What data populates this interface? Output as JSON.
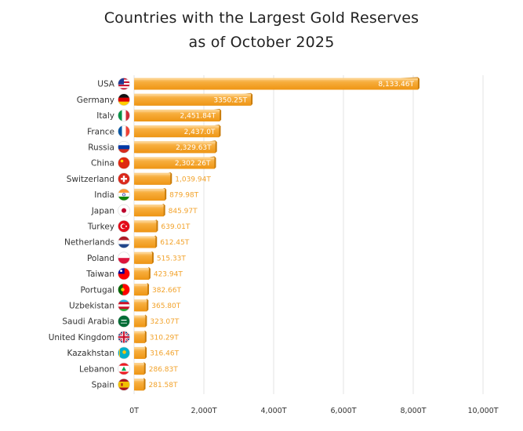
{
  "title_line1": "Countries with the Largest Gold Reserves",
  "title_line2": "as of October 2025",
  "chart_data": {
    "type": "bar",
    "orientation": "horizontal",
    "title": "Countries with the Largest Gold Reserves as of October 2025",
    "xlabel": "",
    "ylabel": "",
    "xlim": [
      0,
      10000
    ],
    "grid": true,
    "categories": [
      "USA",
      "Germany",
      "Italy",
      "France",
      "Russia",
      "China",
      "Switzerland",
      "India",
      "Japan",
      "Turkey",
      "Netherlands",
      "Poland",
      "Taiwan",
      "Portugal",
      "Uzbekistan",
      "Saudi Arabia",
      "United Kingdom",
      "Kazakhstan",
      "Lebanon",
      "Spain"
    ],
    "values": [
      8133.46,
      3350.25,
      2451.84,
      2437.0,
      2329.63,
      2302.26,
      1039.94,
      879.98,
      845.97,
      639.01,
      612.45,
      515.33,
      423.94,
      382.66,
      365.8,
      323.07,
      310.29,
      316.46,
      286.83,
      281.58
    ],
    "value_labels": [
      "8,133.46T",
      "3350.25T",
      "2,451.84T",
      "2,437.0T",
      "2,329.63T",
      "2,302.26T",
      "1,039.94T",
      "879.98T",
      "845.97T",
      "639.01T",
      "612.45T",
      "515.33T",
      "423.94T",
      "382.66T",
      "365.80T",
      "323.07T",
      "310.29T",
      "316.46T",
      "286.83T",
      "281.58T"
    ],
    "flag_icons": [
      "usa-flag-icon",
      "germany-flag-icon",
      "italy-flag-icon",
      "france-flag-icon",
      "russia-flag-icon",
      "china-flag-icon",
      "switzerland-flag-icon",
      "india-flag-icon",
      "japan-flag-icon",
      "turkey-flag-icon",
      "netherlands-flag-icon",
      "poland-flag-icon",
      "taiwan-flag-icon",
      "portugal-flag-icon",
      "uzbekistan-flag-icon",
      "saudi-arabia-flag-icon",
      "united-kingdom-flag-icon",
      "kazakhstan-flag-icon",
      "lebanon-flag-icon",
      "spain-flag-icon"
    ],
    "x_ticks": [
      0,
      2000,
      4000,
      6000,
      8000,
      10000
    ],
    "x_tick_labels": [
      "0T",
      "2,000T",
      "4,000T",
      "6,000T",
      "8,000T",
      "10,000T"
    ],
    "bar_color": "#f5a623",
    "bar_highlight_color": "#fcd08a",
    "bar_shadow_color": "#c97c0a",
    "inside_label_color": "#ffffff",
    "outside_label_color": "#f2a22a",
    "grid_color": "#e3e3e3"
  }
}
